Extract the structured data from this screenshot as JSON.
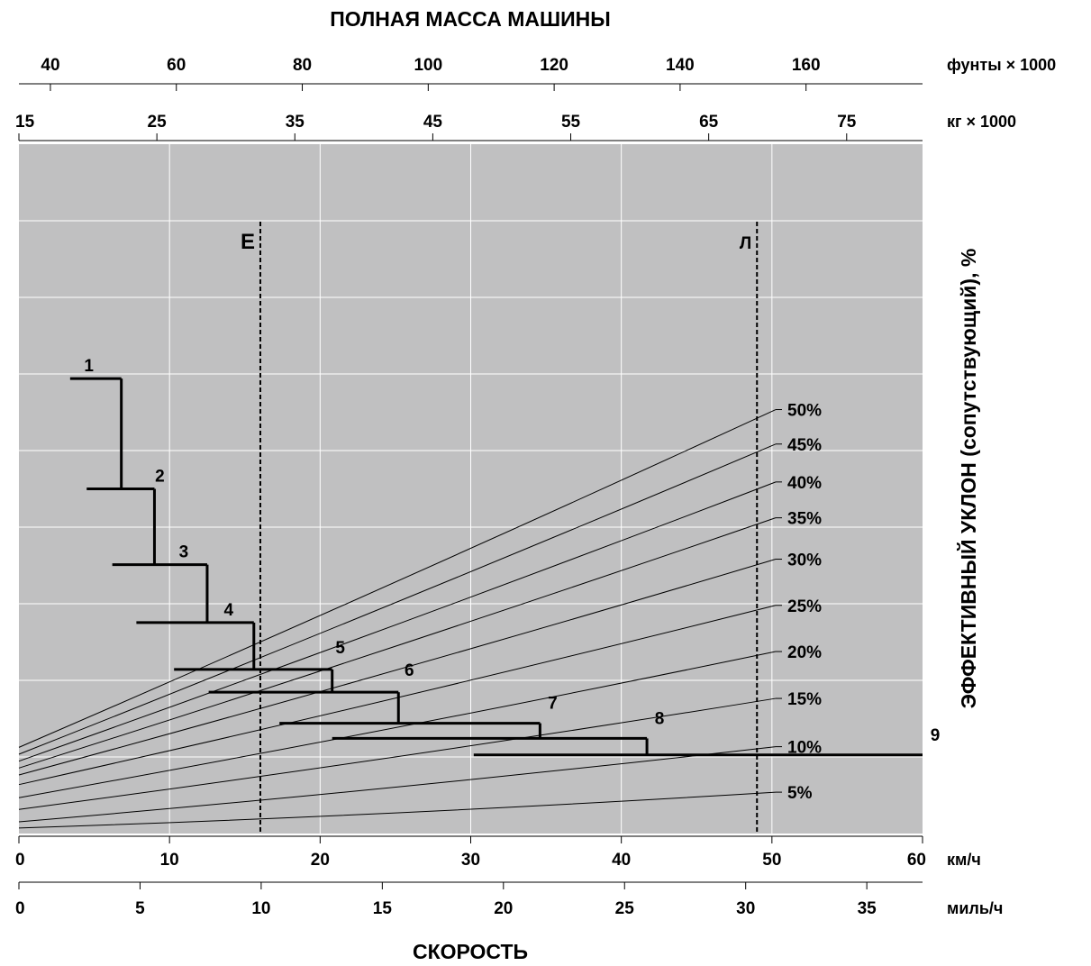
{
  "chart_data": {
    "type": "line",
    "title": "ПОЛНАЯ МАССА МАШИНЫ",
    "xlabel": "СКОРОСТЬ",
    "ylabel": "ЭФФЕКТИВНЫЙ УКЛОН (сопутствующий), %",
    "grid": true,
    "colors": {
      "plot_bg": "#c0c0c1",
      "grid": "#ffffff",
      "lines": "#000000"
    },
    "top_axes": [
      {
        "unit": "фунты × 1000",
        "ticks": [
          40,
          60,
          80,
          100,
          120,
          140,
          160
        ],
        "range": [
          35,
          178.5
        ]
      },
      {
        "unit": "кг × 1000",
        "ticks": [
          15,
          25,
          35,
          45,
          55,
          65,
          75
        ],
        "range": [
          15,
          80.5
        ]
      }
    ],
    "bottom_axes": [
      {
        "unit": "км/ч",
        "ticks": [
          0,
          10,
          20,
          30,
          40,
          50,
          60
        ],
        "range": [
          0,
          60
        ]
      },
      {
        "unit": "миль/ч",
        "ticks": [
          0,
          5,
          10,
          15,
          20,
          25,
          30,
          35
        ],
        "range": [
          0,
          37.3
        ]
      }
    ],
    "reference_lines": [
      {
        "label": "Е",
        "kg_x1000": 32.5
      },
      {
        "label": "Л",
        "kg_x1000": 68.5
      }
    ],
    "grade_lines": [
      {
        "label": "50%",
        "y_at_0": 0.125,
        "y_at_max": 0.615
      },
      {
        "label": "45%",
        "y_at_0": 0.115,
        "y_at_max": 0.565
      },
      {
        "label": "40%",
        "y_at_0": 0.105,
        "y_at_max": 0.51
      },
      {
        "label": "35%",
        "y_at_0": 0.095,
        "y_at_max": 0.458
      },
      {
        "label": "30%",
        "y_at_0": 0.085,
        "y_at_max": 0.398
      },
      {
        "label": "25%",
        "y_at_0": 0.071,
        "y_at_max": 0.331
      },
      {
        "label": "20%",
        "y_at_0": 0.052,
        "y_at_max": 0.264
      },
      {
        "label": "15%",
        "y_at_0": 0.035,
        "y_at_max": 0.196
      },
      {
        "label": "10%",
        "y_at_0": 0.017,
        "y_at_max": 0.126
      },
      {
        "label": "5%",
        "y_at_0": 0.008,
        "y_at_max": 0.06
      }
    ],
    "gears": [
      {
        "label": "1",
        "x_start": 3.4,
        "x_end": 6.8,
        "y": 0.66
      },
      {
        "label": "2",
        "x_start": 4.5,
        "x_end": 9.0,
        "y": 0.5
      },
      {
        "label": "3",
        "x_start": 6.2,
        "x_end": 12.5,
        "y": 0.39
      },
      {
        "label": "4",
        "x_start": 7.8,
        "x_end": 15.6,
        "y": 0.306
      },
      {
        "label": "5",
        "x_start": 10.3,
        "x_end": 20.8,
        "y": 0.238
      },
      {
        "label": "6",
        "x_start": 12.6,
        "x_end": 25.2,
        "y": 0.205
      },
      {
        "label": "7",
        "x_start": 17.3,
        "x_end": 34.6,
        "y": 0.16
      },
      {
        "label": "8",
        "x_start": 20.8,
        "x_end": 41.7,
        "y": 0.138
      },
      {
        "label": "9",
        "x_start": 30.2,
        "x_end": 60.0,
        "y": 0.114
      }
    ]
  }
}
